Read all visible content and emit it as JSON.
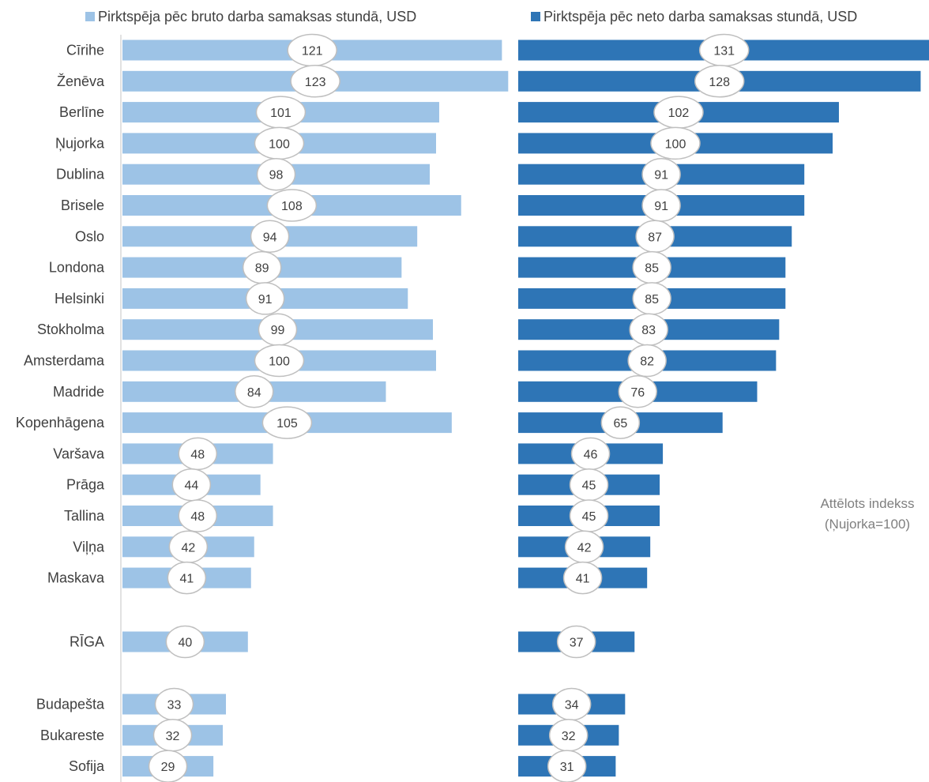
{
  "chart_data": {
    "type": "bar",
    "orientation": "horizontal",
    "categories": [
      "Cīrihe",
      "Ženēva",
      "Berlīne",
      "Ņujorka",
      "Dublina",
      "Brisele",
      "Oslo",
      "Londona",
      "Helsinki",
      "Stokholma",
      "Amsterdama",
      "Madride",
      "Kopenhāgena",
      "Varšava",
      "Prāga",
      "Tallina",
      "Viļņa",
      "Maskava",
      "RĪGA",
      "Budapešta",
      "Bukareste",
      "Sofija"
    ],
    "series": [
      {
        "name": "Pirktspēja pēc bruto darba samaksas stundā, USD",
        "color": "#9dc3e6",
        "values": [
          121,
          123,
          101,
          100,
          98,
          108,
          94,
          89,
          91,
          99,
          100,
          84,
          105,
          48,
          44,
          48,
          42,
          41,
          40,
          33,
          32,
          29
        ]
      },
      {
        "name": "Pirktspēja pēc neto darba samaksas stundā, USD",
        "color": "#2e75b6",
        "values": [
          131,
          128,
          102,
          100,
          91,
          91,
          87,
          85,
          85,
          83,
          82,
          76,
          65,
          46,
          45,
          45,
          42,
          41,
          37,
          34,
          32,
          31
        ]
      }
    ],
    "annotation": [
      "Attēlots indekss",
      "(Ņujorka=100)"
    ],
    "legend_position": "top",
    "grid": false
  }
}
